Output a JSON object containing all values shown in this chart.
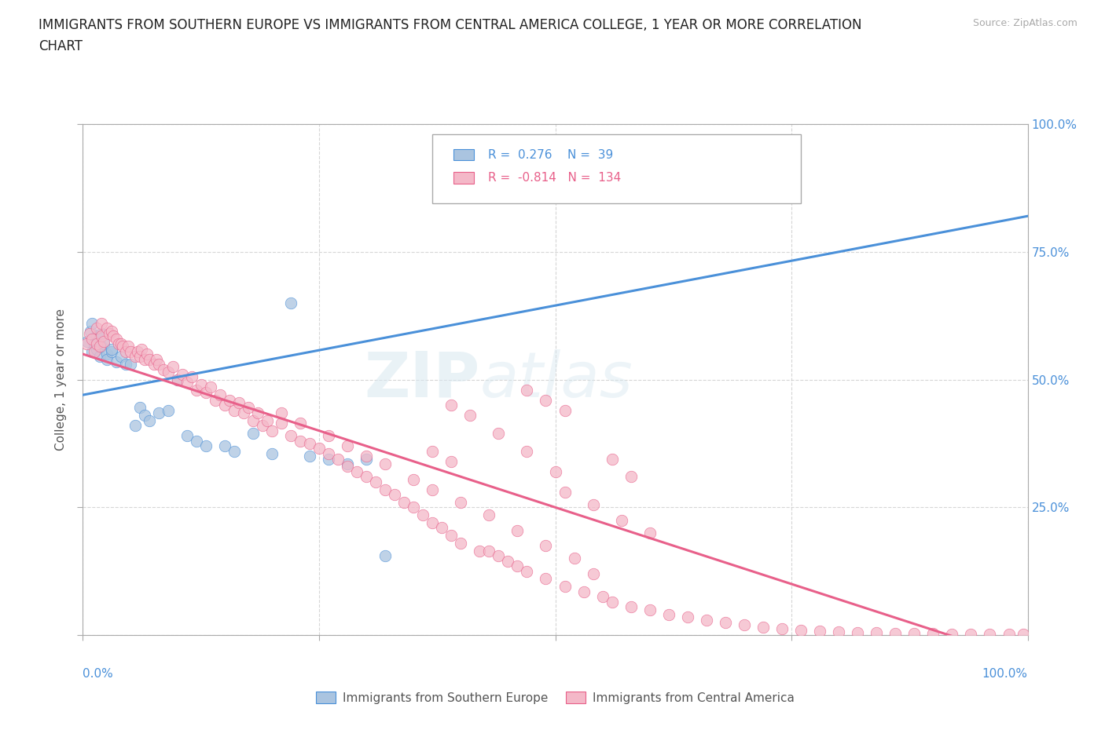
{
  "title": "IMMIGRANTS FROM SOUTHERN EUROPE VS IMMIGRANTS FROM CENTRAL AMERICA COLLEGE, 1 YEAR OR MORE CORRELATION\nCHART",
  "ylabel": "College, 1 year or more",
  "source": "Source: ZipAtlas.com",
  "watermark_zip": "ZIP",
  "watermark_atlas": "atlas",
  "blue_R": 0.276,
  "blue_N": 39,
  "pink_R": -0.814,
  "pink_N": 134,
  "blue_color": "#aac4e0",
  "blue_line_color": "#4a90d9",
  "blue_edge_color": "#4a90d9",
  "pink_color": "#f4b8c8",
  "pink_line_color": "#e8608a",
  "pink_edge_color": "#e8608a",
  "grid_color": "#cccccc",
  "background_color": "#ffffff",
  "legend_blue_label": "Immigrants from Southern Europe",
  "legend_pink_label": "Immigrants from Central America",
  "blue_trendline": [
    0.0,
    0.47,
    1.0,
    0.82
  ],
  "pink_trendline": [
    0.0,
    0.55,
    1.0,
    -0.05
  ],
  "blue_scatter_x": [
    0.005,
    0.008,
    0.01,
    0.01,
    0.012,
    0.015,
    0.015,
    0.018,
    0.02,
    0.02,
    0.022,
    0.025,
    0.025,
    0.03,
    0.03,
    0.035,
    0.04,
    0.045,
    0.05,
    0.055,
    0.06,
    0.065,
    0.07,
    0.08,
    0.09,
    0.1,
    0.11,
    0.12,
    0.13,
    0.15,
    0.16,
    0.18,
    0.2,
    0.22,
    0.24,
    0.26,
    0.28,
    0.3,
    0.32
  ],
  "blue_scatter_y": [
    0.575,
    0.595,
    0.555,
    0.61,
    0.57,
    0.585,
    0.56,
    0.545,
    0.59,
    0.565,
    0.57,
    0.55,
    0.54,
    0.555,
    0.56,
    0.535,
    0.545,
    0.53,
    0.53,
    0.41,
    0.445,
    0.43,
    0.42,
    0.435,
    0.44,
    0.5,
    0.39,
    0.38,
    0.37,
    0.37,
    0.36,
    0.395,
    0.355,
    0.65,
    0.35,
    0.345,
    0.335,
    0.345,
    0.155
  ],
  "pink_scatter_x": [
    0.004,
    0.007,
    0.01,
    0.012,
    0.015,
    0.015,
    0.018,
    0.02,
    0.02,
    0.022,
    0.025,
    0.028,
    0.03,
    0.032,
    0.035,
    0.038,
    0.04,
    0.042,
    0.045,
    0.048,
    0.05,
    0.055,
    0.058,
    0.06,
    0.062,
    0.065,
    0.068,
    0.07,
    0.075,
    0.078,
    0.08,
    0.085,
    0.09,
    0.095,
    0.1,
    0.105,
    0.11,
    0.115,
    0.12,
    0.125,
    0.13,
    0.135,
    0.14,
    0.145,
    0.15,
    0.155,
    0.16,
    0.165,
    0.17,
    0.175,
    0.18,
    0.185,
    0.19,
    0.195,
    0.2,
    0.21,
    0.22,
    0.23,
    0.24,
    0.25,
    0.26,
    0.27,
    0.28,
    0.29,
    0.3,
    0.31,
    0.32,
    0.33,
    0.34,
    0.35,
    0.36,
    0.37,
    0.38,
    0.39,
    0.4,
    0.42,
    0.43,
    0.44,
    0.45,
    0.46,
    0.47,
    0.49,
    0.51,
    0.53,
    0.55,
    0.56,
    0.58,
    0.6,
    0.62,
    0.64,
    0.66,
    0.68,
    0.7,
    0.72,
    0.74,
    0.76,
    0.78,
    0.8,
    0.82,
    0.84,
    0.86,
    0.88,
    0.9,
    0.92,
    0.94,
    0.96,
    0.98,
    0.995,
    0.21,
    0.23,
    0.26,
    0.28,
    0.3,
    0.32,
    0.35,
    0.37,
    0.4,
    0.43,
    0.46,
    0.49,
    0.52,
    0.54,
    0.39,
    0.41,
    0.44,
    0.47,
    0.5,
    0.47,
    0.49,
    0.51,
    0.37,
    0.39,
    0.51,
    0.54,
    0.57,
    0.6,
    0.56,
    0.58
  ],
  "pink_scatter_y": [
    0.57,
    0.59,
    0.58,
    0.555,
    0.6,
    0.57,
    0.565,
    0.585,
    0.61,
    0.575,
    0.6,
    0.59,
    0.595,
    0.585,
    0.58,
    0.57,
    0.57,
    0.565,
    0.555,
    0.565,
    0.555,
    0.545,
    0.555,
    0.545,
    0.56,
    0.54,
    0.55,
    0.54,
    0.53,
    0.54,
    0.53,
    0.52,
    0.515,
    0.525,
    0.5,
    0.51,
    0.495,
    0.505,
    0.48,
    0.49,
    0.475,
    0.485,
    0.46,
    0.47,
    0.45,
    0.46,
    0.44,
    0.455,
    0.435,
    0.445,
    0.42,
    0.435,
    0.41,
    0.42,
    0.4,
    0.415,
    0.39,
    0.38,
    0.375,
    0.365,
    0.355,
    0.345,
    0.33,
    0.32,
    0.31,
    0.3,
    0.285,
    0.275,
    0.26,
    0.25,
    0.235,
    0.22,
    0.21,
    0.195,
    0.18,
    0.165,
    0.165,
    0.155,
    0.145,
    0.135,
    0.125,
    0.11,
    0.095,
    0.085,
    0.075,
    0.065,
    0.055,
    0.05,
    0.04,
    0.035,
    0.03,
    0.025,
    0.02,
    0.015,
    0.012,
    0.01,
    0.008,
    0.006,
    0.005,
    0.004,
    0.003,
    0.003,
    0.003,
    0.002,
    0.002,
    0.002,
    0.002,
    0.001,
    0.435,
    0.415,
    0.39,
    0.37,
    0.35,
    0.335,
    0.305,
    0.285,
    0.26,
    0.235,
    0.205,
    0.175,
    0.15,
    0.12,
    0.45,
    0.43,
    0.395,
    0.36,
    0.32,
    0.48,
    0.46,
    0.44,
    0.36,
    0.34,
    0.28,
    0.255,
    0.225,
    0.2,
    0.345,
    0.31
  ]
}
